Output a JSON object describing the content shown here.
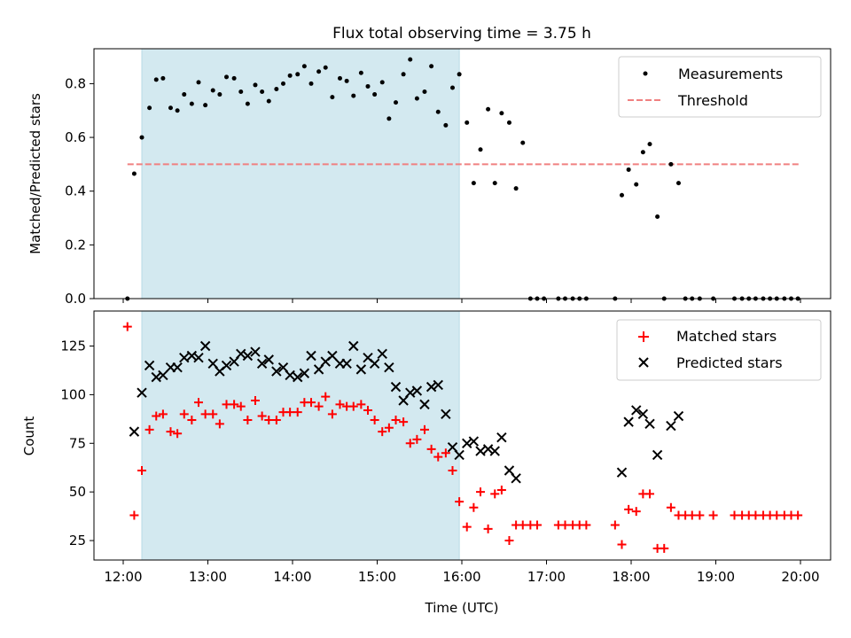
{
  "chart_data": [
    {
      "type": "scatter",
      "title": "Flux total observing time = 3.75 h",
      "xlabel": "",
      "ylabel": "Matched/Predicted stars",
      "ylim": [
        0,
        0.93
      ],
      "yticks": [
        0.0,
        0.2,
        0.4,
        0.6,
        0.8
      ],
      "ytick_labels": [
        "0.0",
        "0.2",
        "0.4",
        "0.6",
        "0.8"
      ],
      "legend_position": "top-right",
      "grid": false,
      "shaded_region": {
        "from": 12.22,
        "to": 15.97,
        "color": "#d3e9f0"
      },
      "threshold": {
        "name": "Threshold",
        "value": 0.5,
        "from": 12.05,
        "to": 20.0,
        "color": "#f08080"
      },
      "series": [
        {
          "name": "Measurements",
          "marker": "dot",
          "color": "#000000",
          "points": [
            [
              12.05,
              0.0
            ],
            [
              12.13,
              0.465
            ],
            [
              12.22,
              0.6
            ],
            [
              12.31,
              0.71
            ],
            [
              12.39,
              0.815
            ],
            [
              12.47,
              0.82
            ],
            [
              12.56,
              0.71
            ],
            [
              12.64,
              0.7
            ],
            [
              12.72,
              0.76
            ],
            [
              12.81,
              0.725
            ],
            [
              12.89,
              0.805
            ],
            [
              12.97,
              0.72
            ],
            [
              13.06,
              0.775
            ],
            [
              13.14,
              0.76
            ],
            [
              13.22,
              0.825
            ],
            [
              13.31,
              0.82
            ],
            [
              13.39,
              0.77
            ],
            [
              13.47,
              0.725
            ],
            [
              13.56,
              0.795
            ],
            [
              13.64,
              0.77
            ],
            [
              13.72,
              0.735
            ],
            [
              13.81,
              0.78
            ],
            [
              13.89,
              0.8
            ],
            [
              13.97,
              0.83
            ],
            [
              14.06,
              0.835
            ],
            [
              14.14,
              0.865
            ],
            [
              14.22,
              0.8
            ],
            [
              14.31,
              0.845
            ],
            [
              14.39,
              0.86
            ],
            [
              14.47,
              0.75
            ],
            [
              14.56,
              0.82
            ],
            [
              14.64,
              0.81
            ],
            [
              14.72,
              0.755
            ],
            [
              14.81,
              0.84
            ],
            [
              14.89,
              0.79
            ],
            [
              14.97,
              0.76
            ],
            [
              15.06,
              0.805
            ],
            [
              15.14,
              0.67
            ],
            [
              15.22,
              0.73
            ],
            [
              15.31,
              0.835
            ],
            [
              15.39,
              0.89
            ],
            [
              15.47,
              0.745
            ],
            [
              15.56,
              0.77
            ],
            [
              15.64,
              0.865
            ],
            [
              15.72,
              0.695
            ],
            [
              15.81,
              0.645
            ],
            [
              15.89,
              0.785
            ],
            [
              15.97,
              0.835
            ],
            [
              16.06,
              0.655
            ],
            [
              16.14,
              0.43
            ],
            [
              16.22,
              0.555
            ],
            [
              16.31,
              0.705
            ],
            [
              16.39,
              0.43
            ],
            [
              16.47,
              0.69
            ],
            [
              16.56,
              0.655
            ],
            [
              16.64,
              0.41
            ],
            [
              16.72,
              0.58
            ],
            [
              16.81,
              0.0
            ],
            [
              16.89,
              0.0
            ],
            [
              16.97,
              0.0
            ],
            [
              17.14,
              0.0
            ],
            [
              17.22,
              0.0
            ],
            [
              17.31,
              0.0
            ],
            [
              17.39,
              0.0
            ],
            [
              17.47,
              0.0
            ],
            [
              17.81,
              0.0
            ],
            [
              17.89,
              0.385
            ],
            [
              17.97,
              0.48
            ],
            [
              18.06,
              0.425
            ],
            [
              18.14,
              0.545
            ],
            [
              18.22,
              0.575
            ],
            [
              18.31,
              0.305
            ],
            [
              18.39,
              0.0
            ],
            [
              18.47,
              0.5
            ],
            [
              18.56,
              0.43
            ],
            [
              18.64,
              0.0
            ],
            [
              18.72,
              0.0
            ],
            [
              18.81,
              0.0
            ],
            [
              18.97,
              0.0
            ],
            [
              19.22,
              0.0
            ],
            [
              19.31,
              0.0
            ],
            [
              19.39,
              0.0
            ],
            [
              19.47,
              0.0
            ],
            [
              19.56,
              0.0
            ],
            [
              19.64,
              0.0
            ],
            [
              19.72,
              0.0
            ],
            [
              19.81,
              0.0
            ],
            [
              19.89,
              0.0
            ],
            [
              19.97,
              0.0
            ]
          ]
        }
      ]
    },
    {
      "type": "scatter",
      "title": "",
      "xlabel": "Time (UTC)",
      "ylabel": "Count",
      "ylim": [
        15,
        143
      ],
      "yticks": [
        25,
        50,
        75,
        100,
        125
      ],
      "ytick_labels": [
        "25",
        "50",
        "75",
        "100",
        "125"
      ],
      "xticks": [
        12,
        13,
        14,
        15,
        16,
        17,
        18,
        19,
        20
      ],
      "xtick_labels": [
        "12:00",
        "13:00",
        "14:00",
        "15:00",
        "16:00",
        "17:00",
        "18:00",
        "19:00",
        "20:00"
      ],
      "legend_position": "top-right",
      "grid": false,
      "shaded_region": {
        "from": 12.22,
        "to": 15.97,
        "color": "#d3e9f0"
      },
      "series": [
        {
          "name": "Matched stars",
          "marker": "plus",
          "color": "#ff0000",
          "points": [
            [
              12.05,
              135
            ],
            [
              12.13,
              38
            ],
            [
              12.22,
              61
            ],
            [
              12.31,
              82
            ],
            [
              12.39,
              89
            ],
            [
              12.47,
              90
            ],
            [
              12.56,
              81
            ],
            [
              12.64,
              80
            ],
            [
              12.72,
              90
            ],
            [
              12.81,
              87
            ],
            [
              12.89,
              96
            ],
            [
              12.97,
              90
            ],
            [
              13.06,
              90
            ],
            [
              13.14,
              85
            ],
            [
              13.22,
              95
            ],
            [
              13.31,
              95
            ],
            [
              13.39,
              94
            ],
            [
              13.47,
              87
            ],
            [
              13.56,
              97
            ],
            [
              13.64,
              89
            ],
            [
              13.72,
              87
            ],
            [
              13.81,
              87
            ],
            [
              13.89,
              91
            ],
            [
              13.97,
              91
            ],
            [
              14.06,
              91
            ],
            [
              14.14,
              96
            ],
            [
              14.22,
              96
            ],
            [
              14.31,
              94
            ],
            [
              14.39,
              99
            ],
            [
              14.47,
              90
            ],
            [
              14.56,
              95
            ],
            [
              14.64,
              94
            ],
            [
              14.72,
              94
            ],
            [
              14.81,
              95
            ],
            [
              14.89,
              92
            ],
            [
              14.97,
              87
            ],
            [
              15.06,
              81
            ],
            [
              15.14,
              83
            ],
            [
              15.22,
              87
            ],
            [
              15.31,
              86
            ],
            [
              15.39,
              75
            ],
            [
              15.47,
              77
            ],
            [
              15.56,
              82
            ],
            [
              15.64,
              72
            ],
            [
              15.72,
              68
            ],
            [
              15.81,
              70
            ],
            [
              15.89,
              61
            ],
            [
              15.97,
              45
            ],
            [
              16.06,
              32
            ],
            [
              16.14,
              42
            ],
            [
              16.22,
              50
            ],
            [
              16.31,
              31
            ],
            [
              16.39,
              49
            ],
            [
              16.47,
              51
            ],
            [
              16.56,
              25
            ],
            [
              16.64,
              33
            ],
            [
              16.72,
              33
            ],
            [
              16.81,
              33
            ],
            [
              16.89,
              33
            ],
            [
              17.14,
              33
            ],
            [
              17.22,
              33
            ],
            [
              17.31,
              33
            ],
            [
              17.39,
              33
            ],
            [
              17.47,
              33
            ],
            [
              17.81,
              33
            ],
            [
              17.89,
              23
            ],
            [
              17.97,
              41
            ],
            [
              18.06,
              40
            ],
            [
              18.14,
              49
            ],
            [
              18.22,
              49
            ],
            [
              18.31,
              21
            ],
            [
              18.39,
              21
            ],
            [
              18.47,
              42
            ],
            [
              18.56,
              38
            ],
            [
              18.64,
              38
            ],
            [
              18.72,
              38
            ],
            [
              18.81,
              38
            ],
            [
              18.97,
              38
            ],
            [
              19.22,
              38
            ],
            [
              19.31,
              38
            ],
            [
              19.39,
              38
            ],
            [
              19.47,
              38
            ],
            [
              19.56,
              38
            ],
            [
              19.64,
              38
            ],
            [
              19.72,
              38
            ],
            [
              19.81,
              38
            ],
            [
              19.89,
              38
            ],
            [
              19.97,
              38
            ]
          ]
        },
        {
          "name": "Predicted stars",
          "marker": "x",
          "color": "#000000",
          "points": [
            [
              12.13,
              81
            ],
            [
              12.22,
              101
            ],
            [
              12.31,
              115
            ],
            [
              12.39,
              109
            ],
            [
              12.47,
              110
            ],
            [
              12.56,
              114
            ],
            [
              12.64,
              114
            ],
            [
              12.72,
              119
            ],
            [
              12.81,
              120
            ],
            [
              12.89,
              119
            ],
            [
              12.97,
              125
            ],
            [
              13.06,
              116
            ],
            [
              13.14,
              112
            ],
            [
              13.22,
              115
            ],
            [
              13.31,
              117
            ],
            [
              13.39,
              121
            ],
            [
              13.47,
              120
            ],
            [
              13.56,
              122
            ],
            [
              13.64,
              116
            ],
            [
              13.72,
              118
            ],
            [
              13.81,
              112
            ],
            [
              13.89,
              114
            ],
            [
              13.97,
              110
            ],
            [
              14.06,
              109
            ],
            [
              14.14,
              111
            ],
            [
              14.22,
              120
            ],
            [
              14.31,
              113
            ],
            [
              14.39,
              117
            ],
            [
              14.47,
              120
            ],
            [
              14.56,
              116
            ],
            [
              14.64,
              116
            ],
            [
              14.72,
              125
            ],
            [
              14.81,
              113
            ],
            [
              14.89,
              119
            ],
            [
              14.97,
              116
            ],
            [
              15.06,
              121
            ],
            [
              15.14,
              114
            ],
            [
              15.22,
              104
            ],
            [
              15.31,
              97
            ],
            [
              15.39,
              101
            ],
            [
              15.47,
              102
            ],
            [
              15.56,
              95
            ],
            [
              15.64,
              104
            ],
            [
              15.72,
              105
            ],
            [
              15.81,
              90
            ],
            [
              15.89,
              73
            ],
            [
              15.97,
              69
            ],
            [
              16.06,
              75
            ],
            [
              16.14,
              76
            ],
            [
              16.22,
              71
            ],
            [
              16.31,
              72
            ],
            [
              16.39,
              71
            ],
            [
              16.47,
              78
            ],
            [
              16.56,
              61
            ],
            [
              16.64,
              57
            ],
            [
              17.89,
              60
            ],
            [
              17.97,
              86
            ],
            [
              18.06,
              92
            ],
            [
              18.14,
              90
            ],
            [
              18.22,
              85
            ],
            [
              18.31,
              69
            ],
            [
              18.47,
              84
            ],
            [
              18.56,
              89
            ]
          ]
        }
      ]
    }
  ]
}
